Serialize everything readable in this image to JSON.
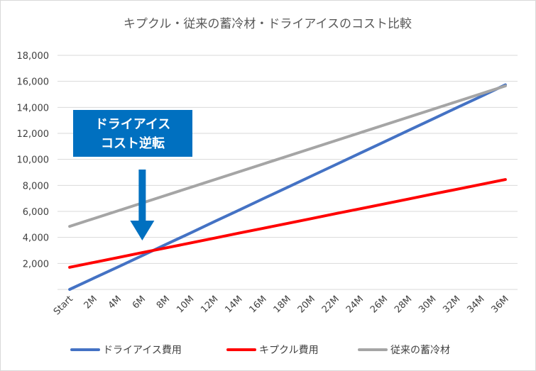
{
  "chart_data": {
    "type": "line",
    "title": "キプクル・従来の蓄冷材・ドライアイスのコスト比較",
    "xlabel": "",
    "ylabel": "",
    "categories": [
      "Start",
      "2M",
      "4M",
      "6M",
      "8M",
      "10M",
      "12M",
      "14M",
      "16M",
      "18M",
      "20M",
      "22M",
      "24M",
      "26M",
      "28M",
      "30M",
      "32M",
      "34M",
      "36M"
    ],
    "ylim": [
      0,
      18000
    ],
    "yticks": [
      2000,
      4000,
      6000,
      8000,
      10000,
      12000,
      14000,
      16000,
      18000
    ],
    "ytick_labels": [
      "2,000",
      "4,000",
      "6,000",
      "8,000",
      "10,000",
      "12,000",
      "14,000",
      "16,000",
      "18,000"
    ],
    "grid": true,
    "legend_position": "bottom",
    "series": [
      {
        "name": "ドライアイス費用",
        "color": "#4472c4",
        "values": [
          0,
          870,
          1730,
          2600,
          3480,
          4350,
          5230,
          6100,
          6980,
          7850,
          8730,
          9600,
          10480,
          11350,
          12230,
          13100,
          13980,
          14850,
          15730
        ]
      },
      {
        "name": "キプクル費用",
        "color": "#ff0000",
        "values": [
          1700,
          2080,
          2450,
          2830,
          3200,
          3580,
          3950,
          4330,
          4700,
          5080,
          5450,
          5830,
          6200,
          6580,
          6950,
          7330,
          7700,
          8080,
          8450
        ]
      },
      {
        "name": "従来の蓄冷材",
        "color": "#a5a5a5",
        "values": [
          4850,
          5450,
          6050,
          6650,
          7250,
          7850,
          8450,
          9050,
          9650,
          10250,
          10850,
          11450,
          12050,
          12650,
          13250,
          13850,
          14450,
          15050,
          15650
        ]
      }
    ],
    "annotation": {
      "lines": [
        "ドライアイス",
        "コスト逆転"
      ],
      "box_color": "#0070c0",
      "arrow_color": "#0070c0",
      "points_to_category": "6M"
    }
  }
}
